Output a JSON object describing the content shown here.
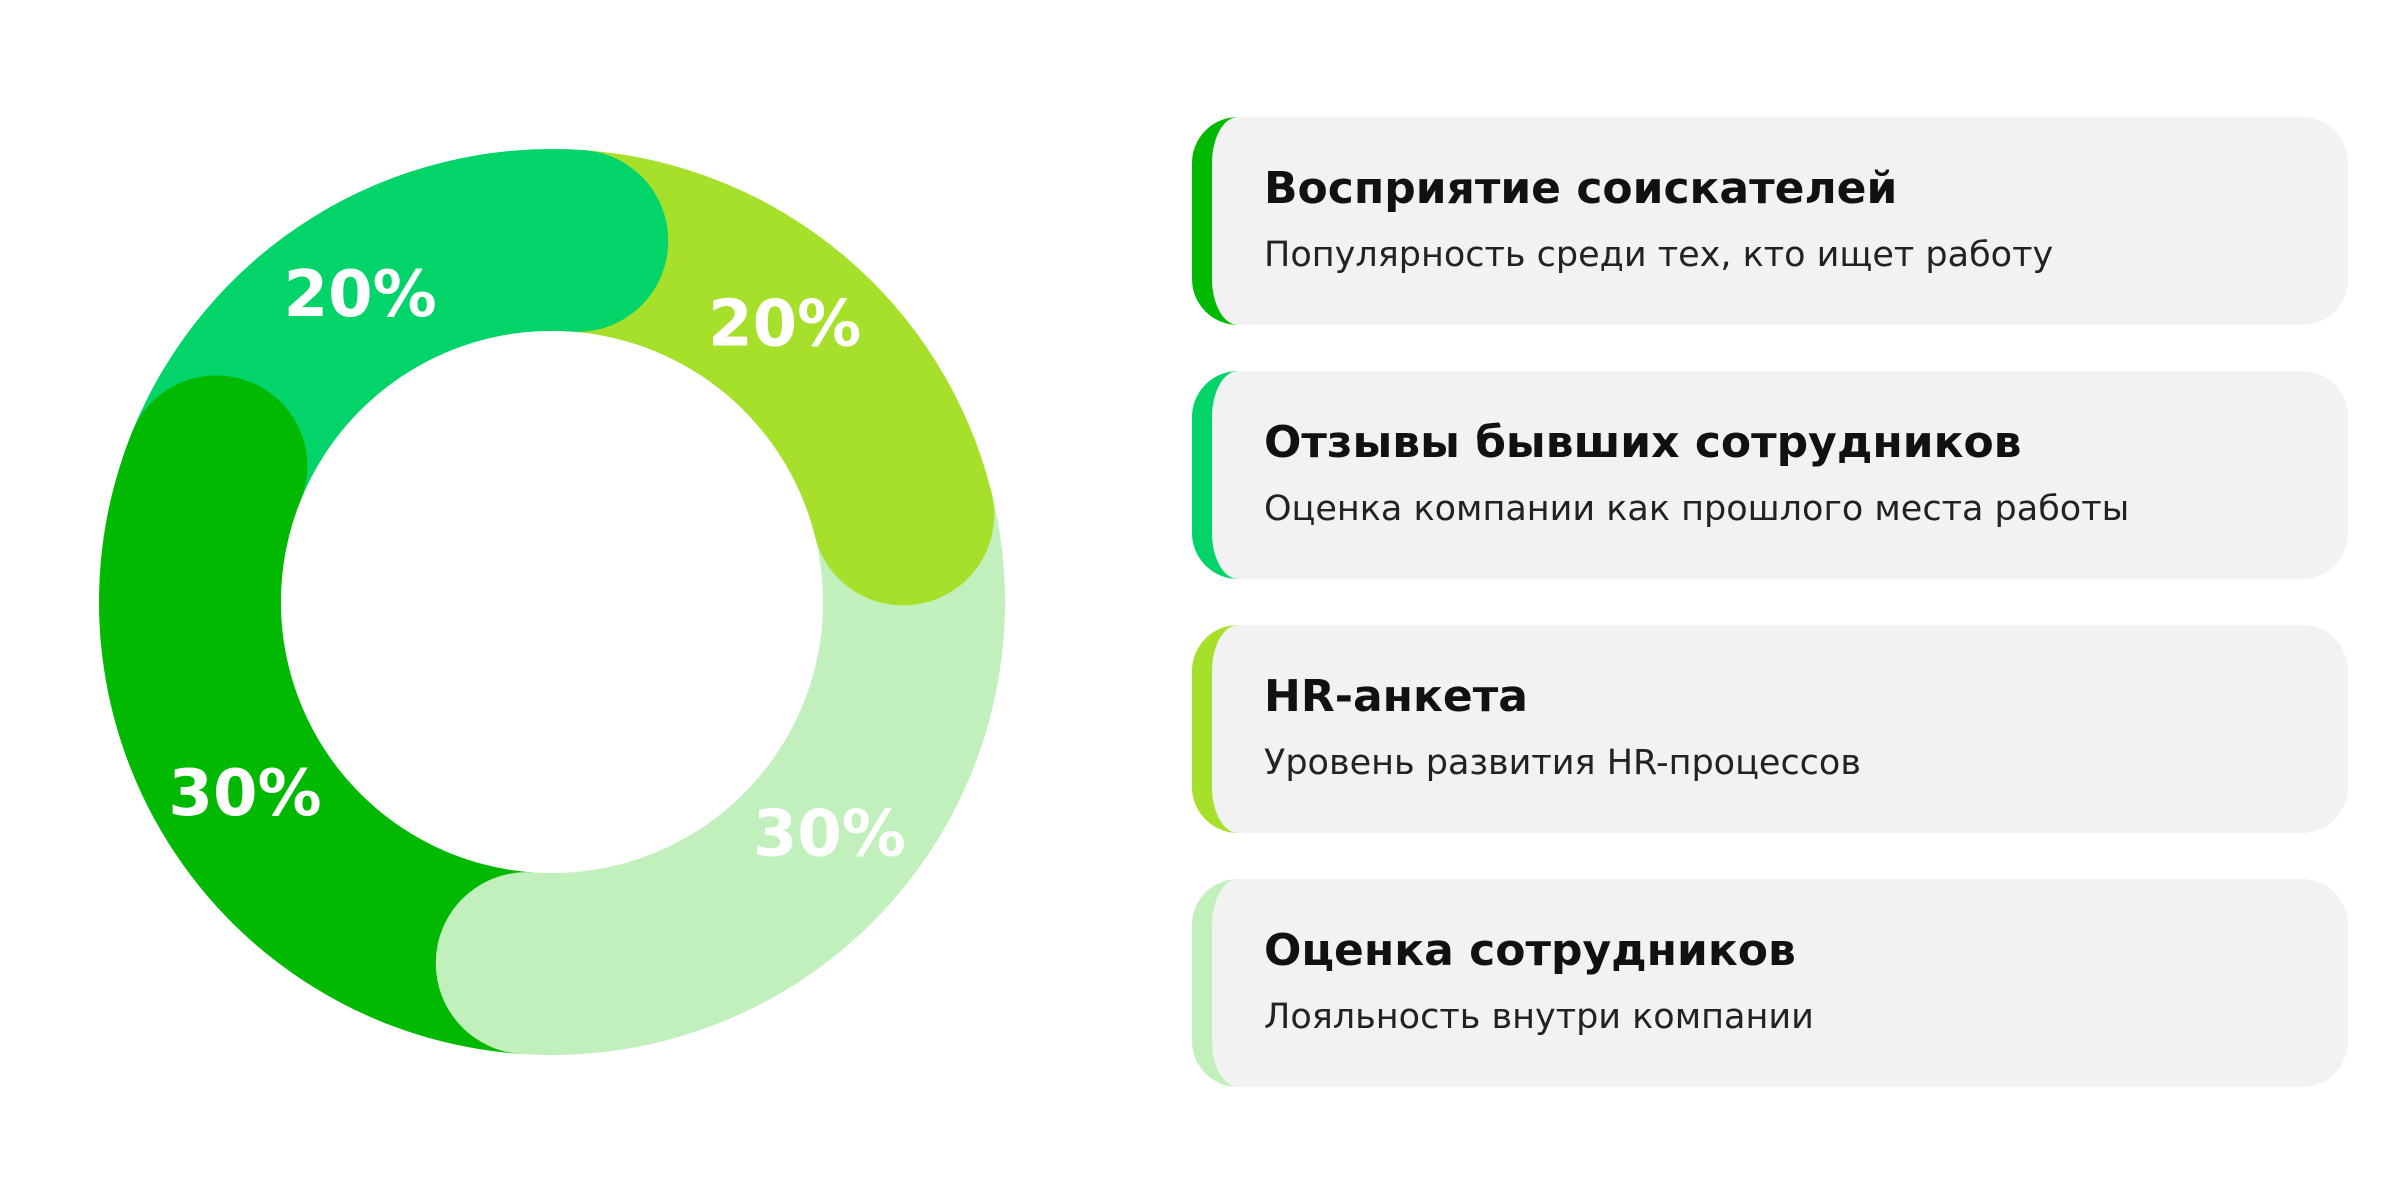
{
  "chart_data": {
    "type": "pie",
    "slices": [
      {
        "value": 20,
        "label": "20%",
        "color": "#02d469"
      },
      {
        "value": 20,
        "label": "20%",
        "color": "#a6e02a"
      },
      {
        "value": 30,
        "label": "30%",
        "color": "#c1f0bc"
      },
      {
        "value": 30,
        "label": "30%",
        "color": "#00b900"
      }
    ]
  },
  "legend": [
    {
      "title": "Восприятие соискателей",
      "desc": "Популярность среди тех, кто ищет работу",
      "color": "#00b900"
    },
    {
      "title": "Отзывы бывших сотрудников",
      "desc": "Оценка компании как прошлого места работы",
      "color": "#02d469"
    },
    {
      "title": "HR-анкета",
      "desc": "Уровень развития HR-процессов",
      "color": "#a6e02a"
    },
    {
      "title": "Оценка сотрудников",
      "desc": "Лояльность внутри компании",
      "color": "#c1f0bc"
    }
  ]
}
